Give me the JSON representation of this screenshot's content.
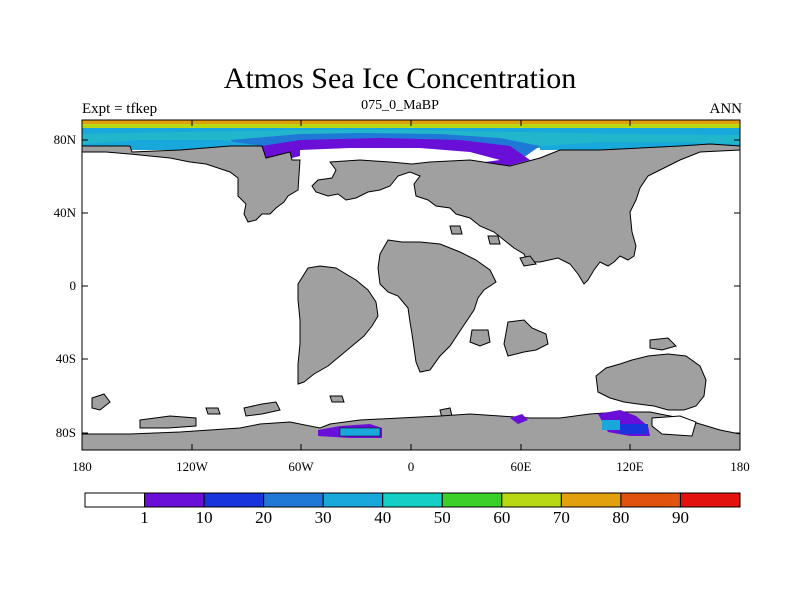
{
  "header": {
    "title": "Atmos Sea Ice Concentration",
    "left_label": "Expt = tfkep",
    "center_label": "075_0_MaBP",
    "right_label": "ANN"
  },
  "axes": {
    "y_ticks": [
      "80N",
      "40N",
      "0",
      "40S",
      "80S"
    ],
    "x_ticks": [
      "180",
      "120W",
      "60W",
      "0",
      "60E",
      "120E",
      "180"
    ]
  },
  "colorbar": {
    "colors": [
      "#ffffff",
      "#6a0fd8",
      "#1a34dd",
      "#1f78d6",
      "#18a8dc",
      "#14cfc6",
      "#3ccf2a",
      "#b8d813",
      "#e2a10c",
      "#e0530e",
      "#e2120e"
    ],
    "labels": [
      "1",
      "10",
      "20",
      "30",
      "40",
      "50",
      "60",
      "70",
      "80",
      "90"
    ]
  },
  "colors": {
    "land": "#a0a0a0",
    "ocean": "#ffffff",
    "ice_light": "#22b6cc",
    "ice_mid": "#1f78d6",
    "ice_heavy": "#6a0fd8"
  }
}
